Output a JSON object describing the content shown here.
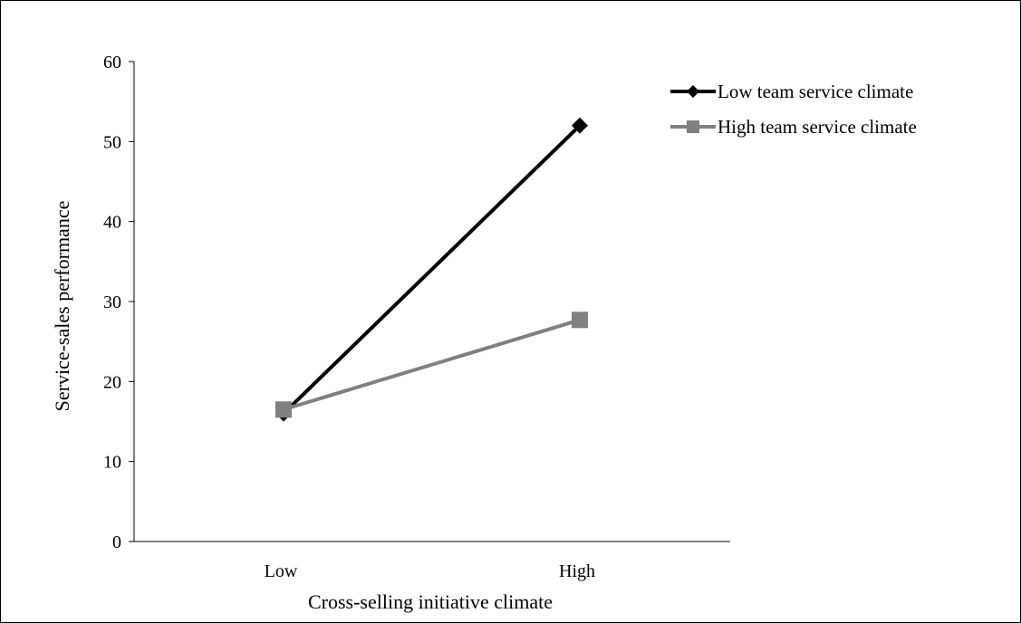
{
  "chart_data": {
    "type": "line",
    "title": "",
    "xlabel": "Cross-selling initiative climate",
    "ylabel": "Service-sales performance",
    "categories": [
      "Low",
      "High"
    ],
    "ylim": [
      0,
      60
    ],
    "yticks": [
      0,
      10,
      20,
      30,
      40,
      50,
      60
    ],
    "grid": false,
    "legend_position": "top-right",
    "series": [
      {
        "name": "Low team service climate",
        "values": [
          16,
          52
        ],
        "color": "#000000",
        "marker": "diamond"
      },
      {
        "name": "High team service climate",
        "values": [
          16.5,
          27.7
        ],
        "color": "#808080",
        "marker": "square"
      }
    ]
  }
}
